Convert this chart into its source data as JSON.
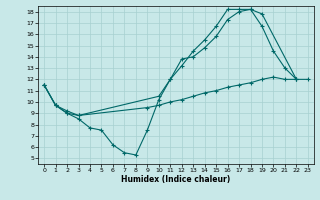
{
  "xlabel": "Humidex (Indice chaleur)",
  "background_color": "#c8e8e8",
  "grid_color": "#a8d0d0",
  "line_color": "#006868",
  "xlim": [
    -0.5,
    23.5
  ],
  "ylim": [
    4.5,
    18.5
  ],
  "xticks": [
    0,
    1,
    2,
    3,
    4,
    5,
    6,
    7,
    8,
    9,
    10,
    11,
    12,
    13,
    14,
    15,
    16,
    17,
    18,
    19,
    20,
    21,
    22,
    23
  ],
  "yticks": [
    5,
    6,
    7,
    8,
    9,
    10,
    11,
    12,
    13,
    14,
    15,
    16,
    17,
    18
  ],
  "line1_x": [
    0,
    1,
    2,
    3,
    4,
    5,
    6,
    7,
    8,
    9,
    10,
    11,
    12,
    13,
    14,
    15,
    16,
    17,
    18,
    19,
    20,
    21,
    22
  ],
  "line1_y": [
    11.5,
    9.7,
    9.0,
    8.5,
    7.7,
    7.5,
    6.2,
    5.5,
    5.3,
    7.5,
    10.2,
    12.0,
    13.8,
    14.0,
    14.8,
    15.8,
    17.3,
    18.0,
    18.2,
    16.7,
    14.5,
    13.0,
    12.0
  ],
  "line2_x": [
    0,
    1,
    2,
    3,
    10,
    11,
    12,
    13,
    14,
    15,
    16,
    17,
    18,
    19,
    22
  ],
  "line2_y": [
    11.5,
    9.7,
    9.2,
    8.8,
    10.5,
    12.0,
    13.2,
    14.5,
    15.5,
    16.7,
    18.2,
    18.2,
    18.2,
    17.8,
    12.0
  ],
  "line3_x": [
    0,
    1,
    2,
    3,
    9,
    10,
    11,
    12,
    13,
    14,
    15,
    16,
    17,
    18,
    19,
    20,
    21,
    22,
    23
  ],
  "line3_y": [
    11.5,
    9.7,
    9.0,
    8.8,
    9.5,
    9.7,
    10.0,
    10.2,
    10.5,
    10.8,
    11.0,
    11.3,
    11.5,
    11.7,
    12.0,
    12.2,
    12.0,
    12.0,
    12.0
  ],
  "markersize": 3,
  "linewidth": 0.8
}
